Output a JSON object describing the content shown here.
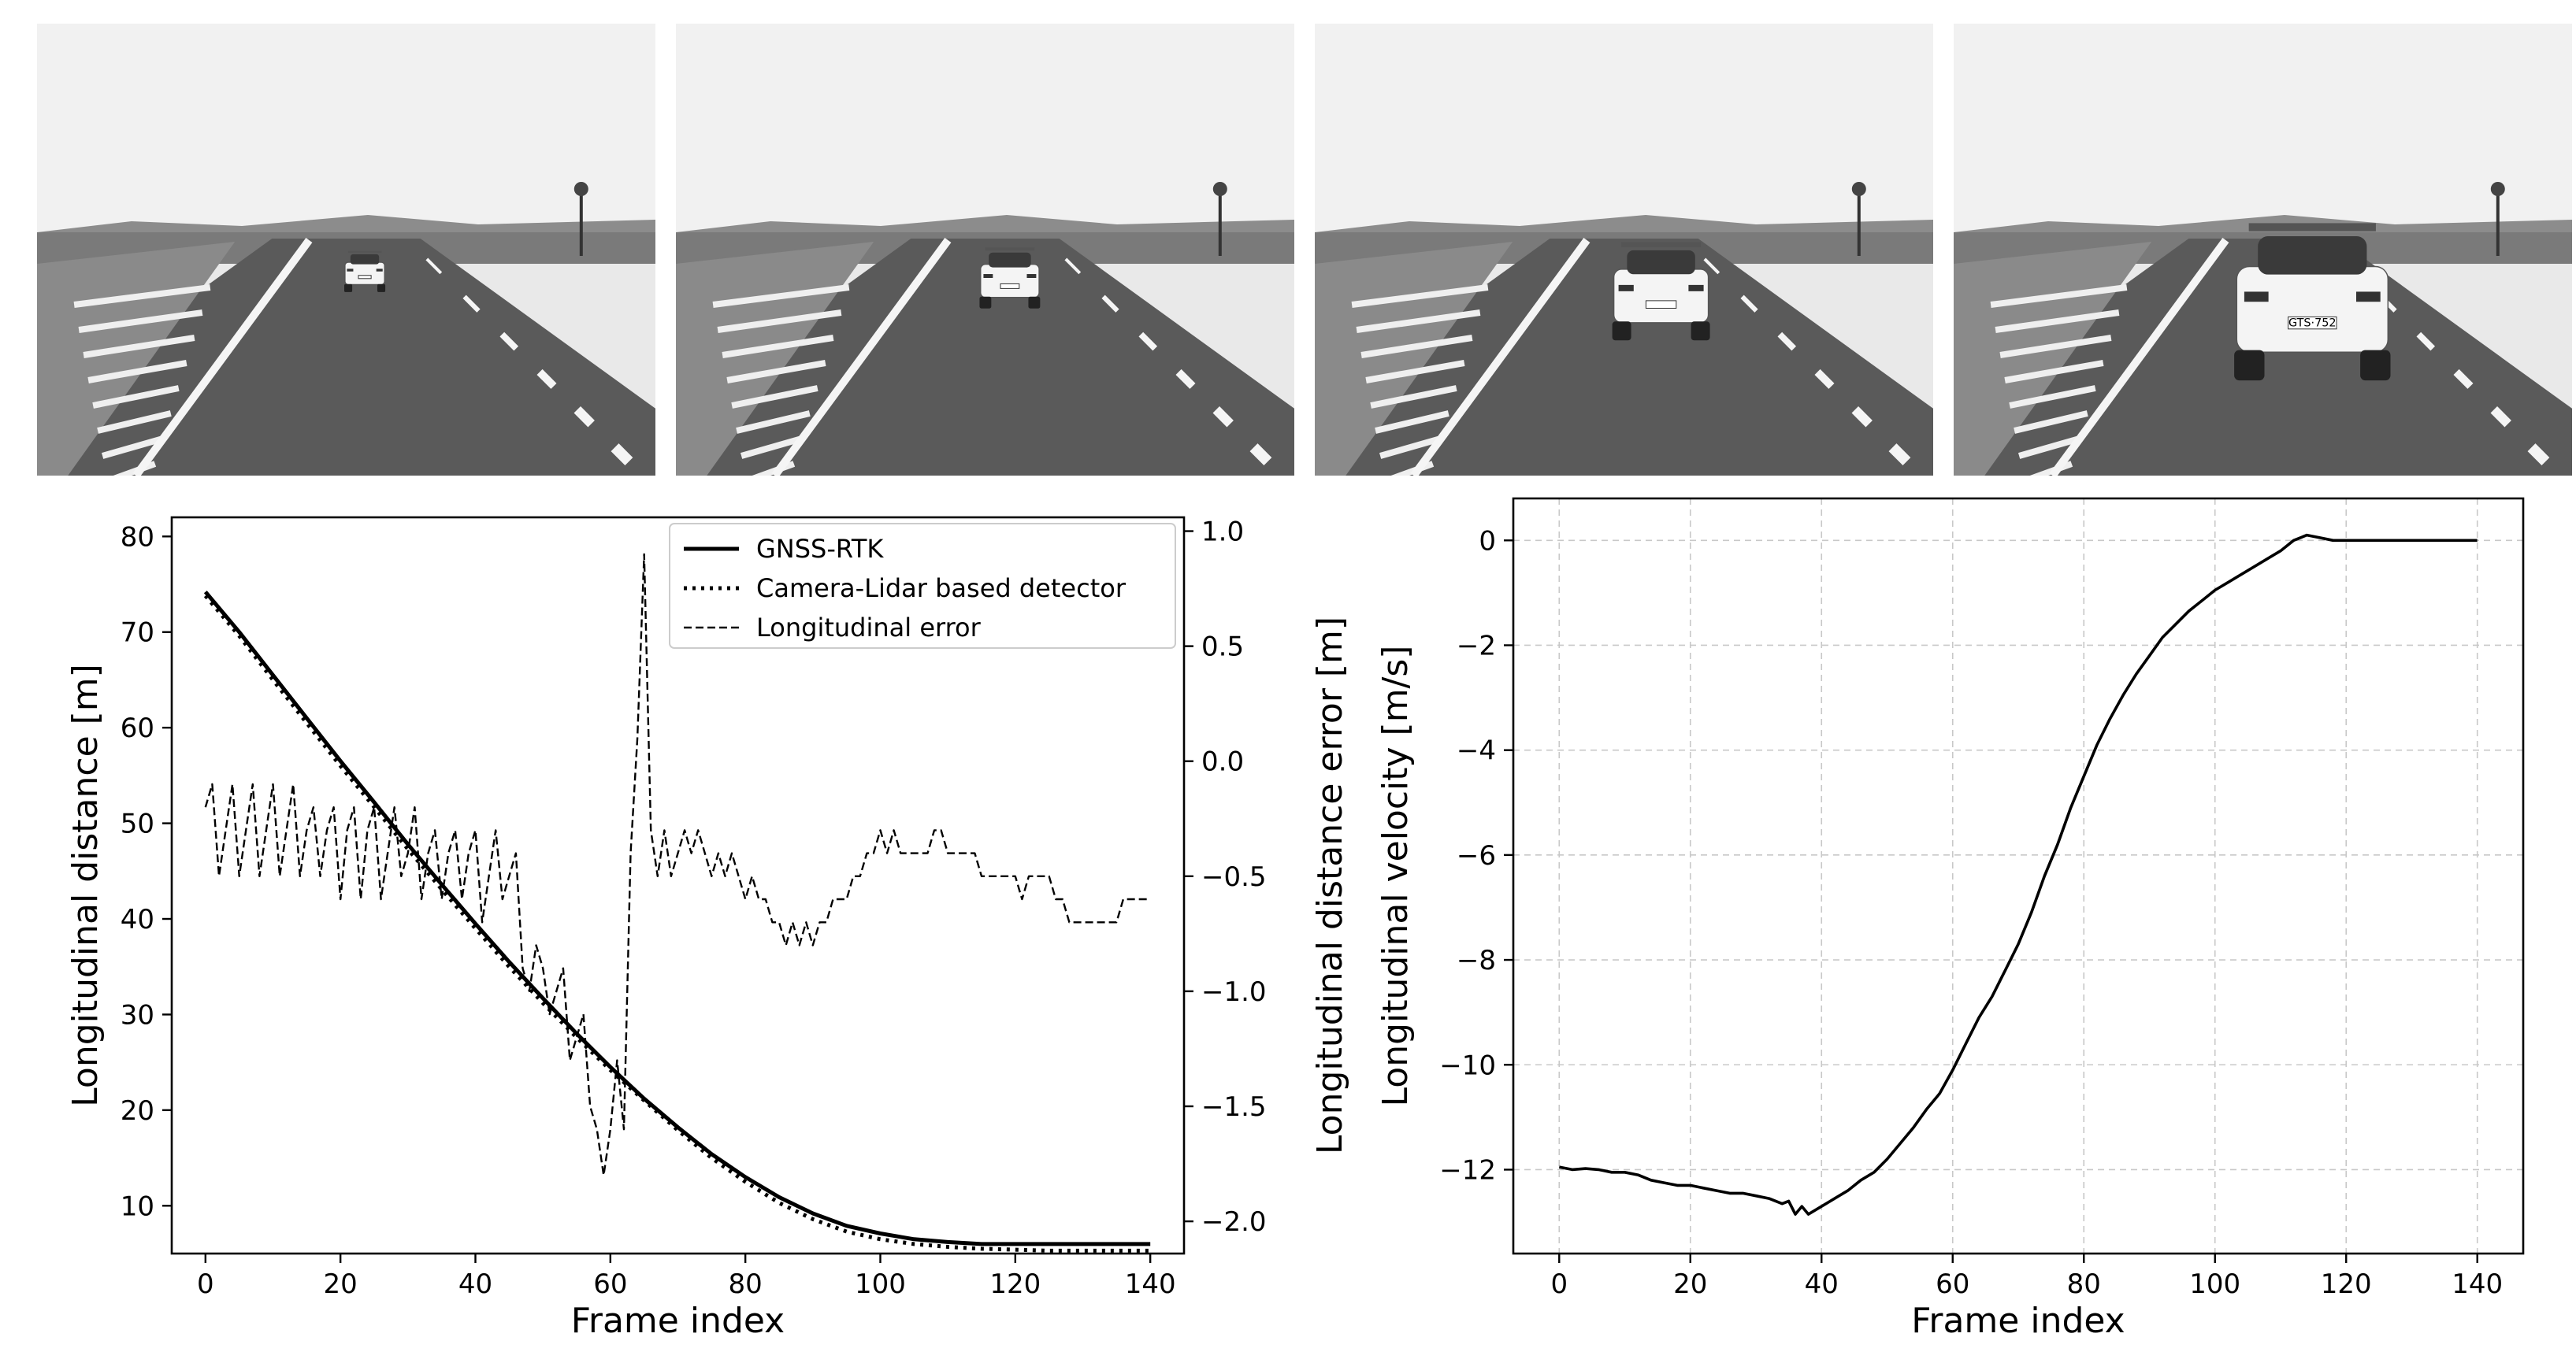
{
  "photos": [
    {
      "name": "frame-photo-1",
      "car_scale": 0.42,
      "car_x": 0.53,
      "car_y": 0.56,
      "plate": ""
    },
    {
      "name": "frame-photo-2",
      "car_scale": 0.62,
      "car_x": 0.54,
      "car_y": 0.58,
      "plate": ""
    },
    {
      "name": "frame-photo-3",
      "car_scale": 1.0,
      "car_x": 0.56,
      "car_y": 0.62,
      "plate": ""
    },
    {
      "name": "frame-photo-4",
      "car_scale": 1.6,
      "car_x": 0.58,
      "car_y": 0.66,
      "plate": "GTS·752"
    }
  ],
  "chart_data": [
    {
      "type": "line",
      "xlabel": "Frame index",
      "ylabel": "Longitudinal distance [m]",
      "y2label": "Longitudinal distance error [m]",
      "xlim": [
        -5,
        145
      ],
      "ylim": [
        5,
        82
      ],
      "y2lim": [
        -2.14,
        1.06
      ],
      "xticks": [
        0,
        20,
        40,
        60,
        80,
        100,
        120,
        140
      ],
      "yticks": [
        10,
        20,
        30,
        40,
        50,
        60,
        70,
        80
      ],
      "y2ticks": [
        -2.0,
        -1.5,
        -1.0,
        -0.5,
        0.0,
        0.5,
        1.0
      ],
      "y2ticklabels": [
        "−2.0",
        "−1.5",
        "−1.0",
        "−0.5",
        "0.0",
        "0.5",
        "1.0"
      ],
      "legend_position": "top-right",
      "grid": false,
      "series": [
        {
          "name": "GNSS-RTK",
          "style": "solid",
          "axis": "left",
          "x": [
            0,
            5,
            10,
            15,
            20,
            25,
            30,
            35,
            40,
            45,
            50,
            55,
            60,
            65,
            70,
            75,
            80,
            85,
            90,
            95,
            100,
            105,
            110,
            115,
            120,
            125,
            130,
            135,
            140
          ],
          "y": [
            74.2,
            70.0,
            65.5,
            61.0,
            56.5,
            52.2,
            47.8,
            43.6,
            39.5,
            35.5,
            31.7,
            28.0,
            24.5,
            21.2,
            18.2,
            15.4,
            13.0,
            10.9,
            9.2,
            7.9,
            7.1,
            6.5,
            6.2,
            6.0,
            6.0,
            6.0,
            6.0,
            6.0,
            6.0
          ]
        },
        {
          "name": "Camera-Lidar based detector",
          "style": "dotted",
          "axis": "left",
          "x": [
            0,
            5,
            10,
            15,
            20,
            25,
            30,
            35,
            40,
            45,
            50,
            55,
            60,
            65,
            70,
            75,
            80,
            85,
            90,
            95,
            100,
            105,
            110,
            115,
            120,
            125,
            130,
            135,
            140
          ],
          "y": [
            73.8,
            69.6,
            65.0,
            60.5,
            56.0,
            51.7,
            47.3,
            43.1,
            39.0,
            35.0,
            31.2,
            27.6,
            24.2,
            21.0,
            17.9,
            15.0,
            12.5,
            10.3,
            8.6,
            7.3,
            6.5,
            6.0,
            5.7,
            5.5,
            5.4,
            5.3,
            5.3,
            5.3,
            5.3
          ]
        },
        {
          "name": "Longitudinal error",
          "style": "dashed",
          "axis": "right",
          "x": [
            0,
            1,
            2,
            3,
            4,
            5,
            6,
            7,
            8,
            9,
            10,
            11,
            12,
            13,
            14,
            15,
            16,
            17,
            18,
            19,
            20,
            21,
            22,
            23,
            24,
            25,
            26,
            27,
            28,
            29,
            30,
            31,
            32,
            33,
            34,
            35,
            36,
            37,
            38,
            39,
            40,
            41,
            42,
            43,
            44,
            45,
            46,
            47,
            48,
            49,
            50,
            51,
            52,
            53,
            54,
            55,
            56,
            57,
            58,
            59,
            60,
            61,
            62,
            63,
            64,
            65,
            66,
            67,
            68,
            69,
            70,
            71,
            72,
            73,
            74,
            75,
            76,
            77,
            78,
            79,
            80,
            81,
            82,
            83,
            84,
            85,
            86,
            87,
            88,
            89,
            90,
            91,
            92,
            93,
            94,
            95,
            96,
            97,
            98,
            99,
            100,
            101,
            102,
            103,
            104,
            105,
            106,
            107,
            108,
            109,
            110,
            111,
            112,
            113,
            114,
            115,
            116,
            117,
            118,
            119,
            120,
            121,
            122,
            123,
            124,
            125,
            126,
            127,
            128,
            129,
            130,
            131,
            132,
            133,
            134,
            135,
            136,
            137,
            138,
            139,
            140
          ],
          "y": [
            -0.2,
            -0.1,
            -0.5,
            -0.3,
            -0.1,
            -0.5,
            -0.3,
            -0.1,
            -0.5,
            -0.3,
            -0.1,
            -0.5,
            -0.3,
            -0.1,
            -0.5,
            -0.3,
            -0.2,
            -0.5,
            -0.3,
            -0.2,
            -0.6,
            -0.3,
            -0.2,
            -0.6,
            -0.3,
            -0.2,
            -0.6,
            -0.4,
            -0.2,
            -0.5,
            -0.4,
            -0.2,
            -0.6,
            -0.4,
            -0.3,
            -0.6,
            -0.4,
            -0.3,
            -0.6,
            -0.4,
            -0.3,
            -0.7,
            -0.5,
            -0.3,
            -0.6,
            -0.5,
            -0.4,
            -0.9,
            -1.0,
            -0.8,
            -0.9,
            -1.1,
            -1.0,
            -0.9,
            -1.3,
            -1.2,
            -1.1,
            -1.5,
            -1.6,
            -1.8,
            -1.6,
            -1.3,
            -1.6,
            -0.4,
            0.1,
            0.9,
            -0.3,
            -0.5,
            -0.3,
            -0.5,
            -0.4,
            -0.3,
            -0.4,
            -0.3,
            -0.4,
            -0.5,
            -0.4,
            -0.5,
            -0.4,
            -0.5,
            -0.6,
            -0.5,
            -0.6,
            -0.6,
            -0.7,
            -0.7,
            -0.8,
            -0.7,
            -0.8,
            -0.7,
            -0.8,
            -0.7,
            -0.7,
            -0.6,
            -0.6,
            -0.6,
            -0.5,
            -0.5,
            -0.4,
            -0.4,
            -0.3,
            -0.4,
            -0.3,
            -0.4,
            -0.4,
            -0.4,
            -0.4,
            -0.4,
            -0.3,
            -0.3,
            -0.4,
            -0.4,
            -0.4,
            -0.4,
            -0.4,
            -0.5,
            -0.5,
            -0.5,
            -0.5,
            -0.5,
            -0.5,
            -0.6,
            -0.5,
            -0.5,
            -0.5,
            -0.5,
            -0.6,
            -0.6,
            -0.7,
            -0.7,
            -0.7,
            -0.7,
            -0.7,
            -0.7,
            -0.7,
            -0.7,
            -0.6,
            -0.6,
            -0.6,
            -0.6,
            -0.6
          ]
        }
      ]
    },
    {
      "type": "line",
      "xlabel": "Frame index",
      "ylabel": "Longitudinal velocity [m/s]",
      "xlim": [
        -7,
        147
      ],
      "ylim": [
        -13.6,
        0.8
      ],
      "xticks": [
        0,
        20,
        40,
        60,
        80,
        100,
        120,
        140
      ],
      "yticks": [
        -12,
        -10,
        -8,
        -6,
        -4,
        -2,
        0
      ],
      "yticklabels": [
        "−12",
        "−10",
        "−8",
        "−6",
        "−4",
        "−2",
        "0"
      ],
      "grid": true,
      "series": [
        {
          "name": "",
          "style": "solid",
          "x": [
            0,
            2,
            4,
            6,
            8,
            10,
            12,
            14,
            16,
            18,
            20,
            22,
            24,
            26,
            28,
            30,
            32,
            34,
            35,
            36,
            37,
            38,
            40,
            42,
            44,
            46,
            48,
            50,
            52,
            54,
            56,
            58,
            60,
            62,
            64,
            66,
            68,
            70,
            72,
            74,
            76,
            78,
            80,
            82,
            84,
            86,
            88,
            90,
            92,
            94,
            96,
            98,
            100,
            102,
            104,
            106,
            108,
            110,
            112,
            114,
            116,
            118,
            120,
            122,
            124,
            125,
            126,
            128,
            130,
            132,
            134,
            136,
            138,
            140
          ],
          "y": [
            -11.95,
            -12.0,
            -11.98,
            -12.0,
            -12.05,
            -12.05,
            -12.1,
            -12.2,
            -12.25,
            -12.3,
            -12.3,
            -12.35,
            -12.4,
            -12.45,
            -12.45,
            -12.5,
            -12.55,
            -12.65,
            -12.6,
            -12.85,
            -12.7,
            -12.85,
            -12.7,
            -12.55,
            -12.4,
            -12.2,
            -12.05,
            -11.8,
            -11.5,
            -11.2,
            -10.85,
            -10.55,
            -10.1,
            -9.6,
            -9.1,
            -8.7,
            -8.2,
            -7.7,
            -7.1,
            -6.4,
            -5.8,
            -5.1,
            -4.5,
            -3.9,
            -3.4,
            -2.95,
            -2.55,
            -2.2,
            -1.85,
            -1.6,
            -1.35,
            -1.15,
            -0.95,
            -0.8,
            -0.65,
            -0.5,
            -0.35,
            -0.2,
            0.0,
            0.1,
            0.05,
            0.0,
            0.0,
            0.0,
            0.0,
            0.0,
            0.0,
            0.0,
            0.0,
            0.0,
            0.0,
            0.0,
            0.0,
            0.0
          ]
        }
      ]
    }
  ]
}
